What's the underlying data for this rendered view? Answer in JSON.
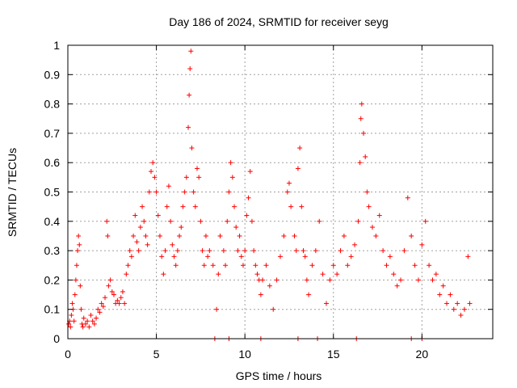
{
  "chart_data": {
    "type": "scatter",
    "title": "Day 186 of 2024, SRMTID for receiver seyg",
    "xlabel": "GPS time / hours",
    "ylabel": "SRMTID / TECUs",
    "xlim": [
      0,
      24
    ],
    "ylim": [
      0,
      1
    ],
    "xticks": [
      0,
      5,
      10,
      15,
      20
    ],
    "xtick_labels": [
      "0",
      "5",
      "10",
      "15",
      "20"
    ],
    "yticks": [
      0,
      0.1,
      0.2,
      0.3,
      0.4,
      0.5,
      0.6,
      0.7,
      0.8,
      0.9,
      1
    ],
    "ytick_labels": [
      "0",
      "0.1",
      "0.2",
      "0.3",
      "0.4",
      "0.5",
      "0.6",
      "0.7",
      "0.8",
      "0.9",
      "1"
    ],
    "grid": true,
    "marker": "+",
    "color": "#ff0000",
    "series": [
      {
        "name": "SRMTID",
        "points": [
          [
            0.05,
            0.05
          ],
          [
            0.1,
            0.06
          ],
          [
            0.15,
            0.04
          ],
          [
            0.2,
            0.08
          ],
          [
            0.25,
            0.12
          ],
          [
            0.3,
            0.1
          ],
          [
            0.35,
            0.06
          ],
          [
            0.4,
            0.15
          ],
          [
            0.45,
            0.2
          ],
          [
            0.5,
            0.25
          ],
          [
            0.55,
            0.3
          ],
          [
            0.6,
            0.35
          ],
          [
            0.65,
            0.32
          ],
          [
            0.7,
            0.18
          ],
          [
            0.75,
            0.1
          ],
          [
            0.8,
            0.05
          ],
          [
            0.85,
            0.04
          ],
          [
            0.9,
            0.07
          ],
          [
            1.0,
            0.05
          ],
          [
            1.1,
            0.06
          ],
          [
            1.2,
            0.04
          ],
          [
            1.3,
            0.08
          ],
          [
            1.4,
            0.06
          ],
          [
            1.5,
            0.05
          ],
          [
            1.6,
            0.07
          ],
          [
            1.7,
            0.1
          ],
          [
            1.8,
            0.09
          ],
          [
            1.9,
            0.12
          ],
          [
            2.0,
            0.11
          ],
          [
            2.1,
            0.14
          ],
          [
            2.2,
            0.4
          ],
          [
            2.25,
            0.35
          ],
          [
            2.3,
            0.18
          ],
          [
            2.4,
            0.2
          ],
          [
            2.5,
            0.16
          ],
          [
            2.6,
            0.15
          ],
          [
            2.7,
            0.12
          ],
          [
            2.8,
            0.13
          ],
          [
            2.9,
            0.12
          ],
          [
            3.0,
            0.14
          ],
          [
            3.1,
            0.16
          ],
          [
            3.2,
            0.12
          ],
          [
            3.3,
            0.22
          ],
          [
            3.4,
            0.25
          ],
          [
            3.5,
            0.3
          ],
          [
            3.6,
            0.28
          ],
          [
            3.7,
            0.35
          ],
          [
            3.8,
            0.42
          ],
          [
            3.9,
            0.33
          ],
          [
            4.0,
            0.3
          ],
          [
            4.1,
            0.38
          ],
          [
            4.2,
            0.45
          ],
          [
            4.3,
            0.4
          ],
          [
            4.4,
            0.35
          ],
          [
            4.5,
            0.32
          ],
          [
            4.6,
            0.5
          ],
          [
            4.7,
            0.57
          ],
          [
            4.8,
            0.6
          ],
          [
            4.9,
            0.55
          ],
          [
            5.0,
            0.5
          ],
          [
            5.1,
            0.42
          ],
          [
            5.2,
            0.35
          ],
          [
            5.3,
            0.28
          ],
          [
            5.4,
            0.22
          ],
          [
            5.5,
            0.3
          ],
          [
            5.6,
            0.45
          ],
          [
            5.7,
            0.52
          ],
          [
            5.8,
            0.4
          ],
          [
            5.9,
            0.32
          ],
          [
            6.0,
            0.28
          ],
          [
            6.1,
            0.25
          ],
          [
            6.2,
            0.3
          ],
          [
            6.3,
            0.35
          ],
          [
            6.4,
            0.38
          ],
          [
            6.5,
            0.45
          ],
          [
            6.6,
            0.5
          ],
          [
            6.7,
            0.55
          ],
          [
            6.8,
            0.72
          ],
          [
            6.85,
            0.83
          ],
          [
            6.9,
            0.92
          ],
          [
            6.95,
            0.98
          ],
          [
            7.0,
            0.65
          ],
          [
            7.1,
            0.5
          ],
          [
            7.2,
            0.45
          ],
          [
            7.3,
            0.58
          ],
          [
            7.4,
            0.55
          ],
          [
            7.5,
            0.4
          ],
          [
            7.6,
            0.3
          ],
          [
            7.7,
            0.25
          ],
          [
            7.8,
            0.35
          ],
          [
            7.9,
            0.28
          ],
          [
            8.0,
            0.3
          ],
          [
            8.2,
            0.25
          ],
          [
            8.4,
            0.1
          ],
          [
            8.5,
            0.22
          ],
          [
            8.6,
            0.35
          ],
          [
            8.8,
            0.3
          ],
          [
            8.9,
            0.25
          ],
          [
            9.0,
            0.4
          ],
          [
            9.1,
            0.5
          ],
          [
            9.2,
            0.6
          ],
          [
            9.3,
            0.55
          ],
          [
            9.4,
            0.45
          ],
          [
            9.5,
            0.38
          ],
          [
            9.6,
            0.3
          ],
          [
            9.7,
            0.35
          ],
          [
            9.8,
            0.28
          ],
          [
            9.9,
            0.25
          ],
          [
            10.0,
            0.3
          ],
          [
            10.1,
            0.42
          ],
          [
            10.2,
            0.48
          ],
          [
            10.3,
            0.57
          ],
          [
            10.4,
            0.4
          ],
          [
            10.5,
            0.3
          ],
          [
            10.6,
            0.25
          ],
          [
            10.7,
            0.22
          ],
          [
            10.8,
            0.2
          ],
          [
            10.9,
            0.15
          ],
          [
            11.0,
            0.2
          ],
          [
            11.2,
            0.25
          ],
          [
            11.4,
            0.18
          ],
          [
            11.6,
            0.1
          ],
          [
            11.8,
            0.2
          ],
          [
            12.0,
            0.28
          ],
          [
            12.2,
            0.35
          ],
          [
            12.4,
            0.5
          ],
          [
            12.5,
            0.53
          ],
          [
            12.6,
            0.45
          ],
          [
            12.8,
            0.35
          ],
          [
            12.9,
            0.3
          ],
          [
            13.0,
            0.58
          ],
          [
            13.1,
            0.65
          ],
          [
            13.2,
            0.45
          ],
          [
            13.3,
            0.3
          ],
          [
            13.4,
            0.28
          ],
          [
            13.5,
            0.2
          ],
          [
            13.6,
            0.15
          ],
          [
            13.8,
            0.25
          ],
          [
            14.0,
            0.3
          ],
          [
            14.2,
            0.4
          ],
          [
            14.4,
            0.22
          ],
          [
            14.6,
            0.12
          ],
          [
            14.8,
            0.2
          ],
          [
            15.0,
            0.25
          ],
          [
            15.2,
            0.22
          ],
          [
            15.4,
            0.3
          ],
          [
            15.6,
            0.35
          ],
          [
            15.8,
            0.25
          ],
          [
            16.0,
            0.28
          ],
          [
            16.2,
            0.32
          ],
          [
            16.4,
            0.4
          ],
          [
            16.5,
            0.6
          ],
          [
            16.55,
            0.75
          ],
          [
            16.6,
            0.8
          ],
          [
            16.7,
            0.7
          ],
          [
            16.8,
            0.62
          ],
          [
            16.9,
            0.5
          ],
          [
            17.0,
            0.45
          ],
          [
            17.2,
            0.38
          ],
          [
            17.4,
            0.35
          ],
          [
            17.6,
            0.42
          ],
          [
            17.8,
            0.3
          ],
          [
            18.0,
            0.25
          ],
          [
            18.2,
            0.28
          ],
          [
            18.4,
            0.22
          ],
          [
            18.6,
            0.18
          ],
          [
            18.8,
            0.2
          ],
          [
            19.0,
            0.3
          ],
          [
            19.2,
            0.48
          ],
          [
            19.4,
            0.35
          ],
          [
            19.6,
            0.25
          ],
          [
            19.8,
            0.2
          ],
          [
            20.0,
            0.32
          ],
          [
            20.2,
            0.4
          ],
          [
            20.4,
            0.25
          ],
          [
            20.6,
            0.2
          ],
          [
            20.8,
            0.22
          ],
          [
            21.0,
            0.15
          ],
          [
            21.2,
            0.18
          ],
          [
            21.4,
            0.12
          ],
          [
            21.6,
            0.15
          ],
          [
            21.8,
            0.1
          ],
          [
            22.0,
            0.12
          ],
          [
            22.2,
            0.08
          ],
          [
            22.4,
            0.1
          ],
          [
            22.6,
            0.28
          ],
          [
            22.7,
            0.12
          ]
        ]
      }
    ],
    "zero_points_x": [
      8.3,
      9.1,
      10.9,
      13.0,
      14.1,
      16.3,
      19.4,
      20.0
    ]
  }
}
